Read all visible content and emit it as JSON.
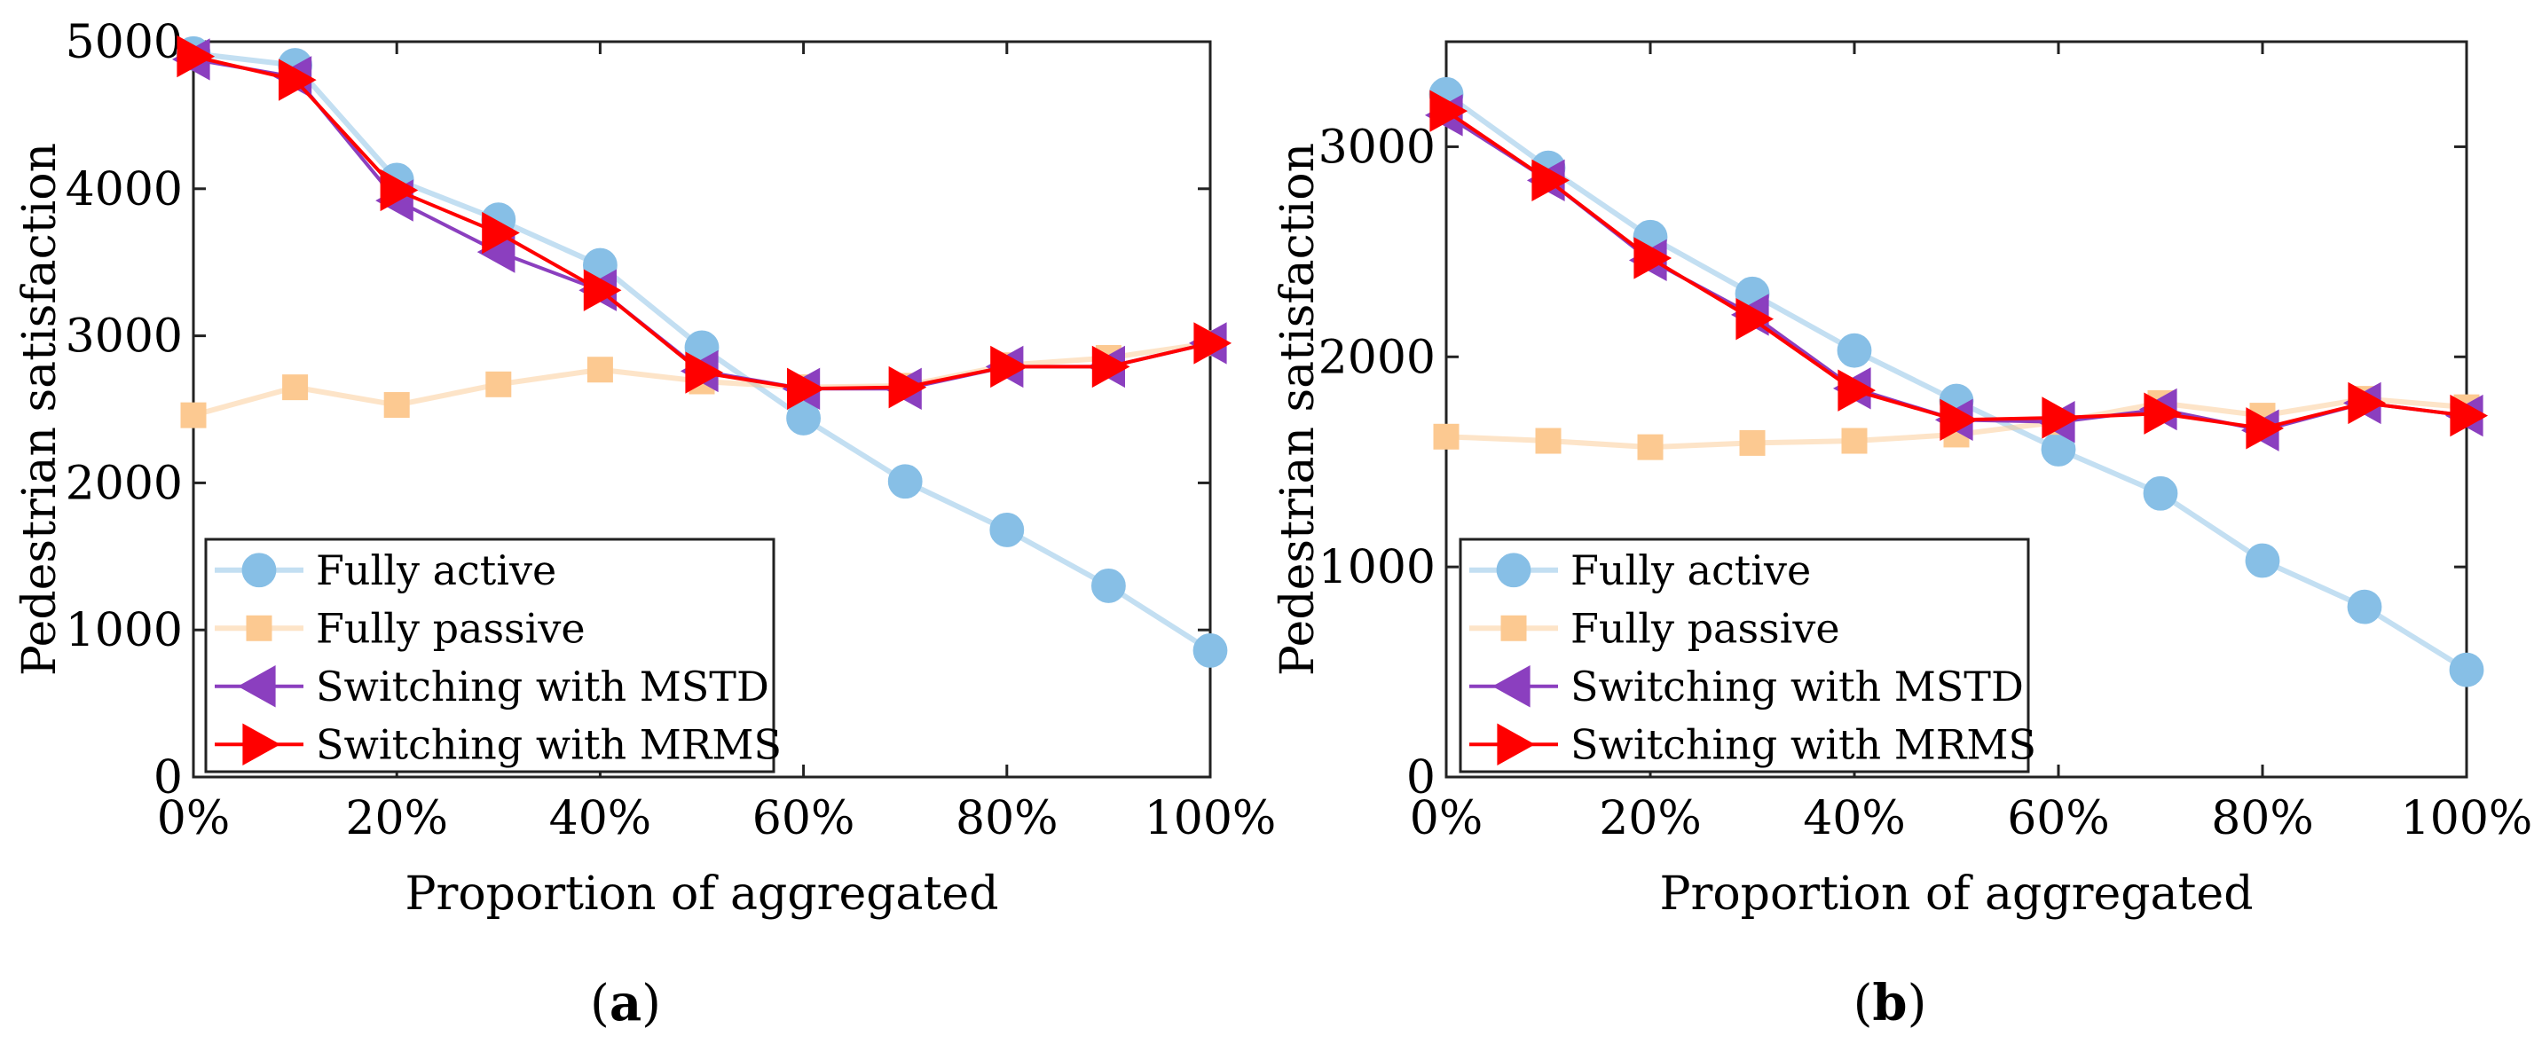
{
  "figure": {
    "panels": [
      {
        "caption_open": "(",
        "caption_letter": "a",
        "caption_close": ")"
      },
      {
        "caption_open": "(",
        "caption_letter": "b",
        "caption_close": ")"
      }
    ]
  },
  "chart_data": [
    {
      "type": "line",
      "panel": "a",
      "title": "",
      "xlabel": "Proportion of aggregated",
      "ylabel": "Pedestrian satisfaction",
      "x": [
        0,
        10,
        20,
        30,
        40,
        50,
        60,
        70,
        80,
        90,
        100
      ],
      "x_tick_labels": [
        "0%",
        "20%",
        "40%",
        "60%",
        "80%",
        "100%"
      ],
      "x_tick_values": [
        0,
        20,
        40,
        60,
        80,
        100
      ],
      "xlim": [
        0,
        100
      ],
      "y_tick_labels": [
        "0",
        "1000",
        "2000",
        "3000",
        "4000",
        "5000"
      ],
      "y_tick_values": [
        0,
        1000,
        2000,
        3000,
        4000,
        5000
      ],
      "ylim": [
        0,
        5000
      ],
      "grid": false,
      "legend_position": "bottom-left",
      "series": [
        {
          "name": "Fully active",
          "color": "#87bfe6",
          "marker": "circle",
          "values": [
            4920,
            4840,
            4060,
            3790,
            3480,
            2920,
            2440,
            2010,
            1680,
            1300,
            860
          ]
        },
        {
          "name": "Fully passive",
          "color": "#fcc991",
          "marker": "square",
          "values": [
            2460,
            2650,
            2530,
            2670,
            2770,
            2690,
            2650,
            2660,
            2800,
            2850,
            2950
          ]
        },
        {
          "name": "Switching with MSTD",
          "color": "#8b3fbf",
          "marker": "triangle-left",
          "values": [
            4880,
            4760,
            3920,
            3570,
            3310,
            2760,
            2640,
            2640,
            2790,
            2790,
            2950
          ]
        },
        {
          "name": "Switching with MRMS",
          "color": "#ff0000",
          "marker": "triangle-right",
          "values": [
            4900,
            4740,
            3990,
            3700,
            3310,
            2750,
            2640,
            2650,
            2790,
            2790,
            2950
          ]
        }
      ]
    },
    {
      "type": "line",
      "panel": "b",
      "title": "",
      "xlabel": "Proportion of aggregated",
      "ylabel": "Pedestrian satisfaction",
      "x": [
        0,
        10,
        20,
        30,
        40,
        50,
        60,
        70,
        80,
        90,
        100
      ],
      "x_tick_labels": [
        "0%",
        "20%",
        "40%",
        "60%",
        "80%",
        "100%"
      ],
      "x_tick_values": [
        0,
        20,
        40,
        60,
        80,
        100
      ],
      "xlim": [
        0,
        100
      ],
      "y_tick_labels": [
        "0",
        "1000",
        "2000",
        "3000"
      ],
      "y_tick_values": [
        0,
        1000,
        2000,
        3000
      ],
      "ylim": [
        0,
        3500
      ],
      "grid": false,
      "legend_position": "bottom-left",
      "series": [
        {
          "name": "Fully active",
          "color": "#87bfe6",
          "marker": "circle",
          "values": [
            3250,
            2900,
            2570,
            2300,
            2030,
            1790,
            1560,
            1350,
            1030,
            810,
            510
          ]
        },
        {
          "name": "Fully passive",
          "color": "#fcc991",
          "marker": "square",
          "values": [
            1620,
            1600,
            1570,
            1590,
            1600,
            1630,
            1690,
            1780,
            1720,
            1800,
            1760
          ]
        },
        {
          "name": "Switching with MSTD",
          "color": "#8b3fbf",
          "marker": "triangle-left",
          "values": [
            3150,
            2840,
            2460,
            2200,
            1850,
            1700,
            1690,
            1750,
            1650,
            1780,
            1720
          ]
        },
        {
          "name": "Switching with MRMS",
          "color": "#ff0000",
          "marker": "triangle-right",
          "values": [
            3170,
            2840,
            2470,
            2180,
            1840,
            1700,
            1710,
            1730,
            1660,
            1780,
            1720
          ]
        }
      ]
    }
  ]
}
